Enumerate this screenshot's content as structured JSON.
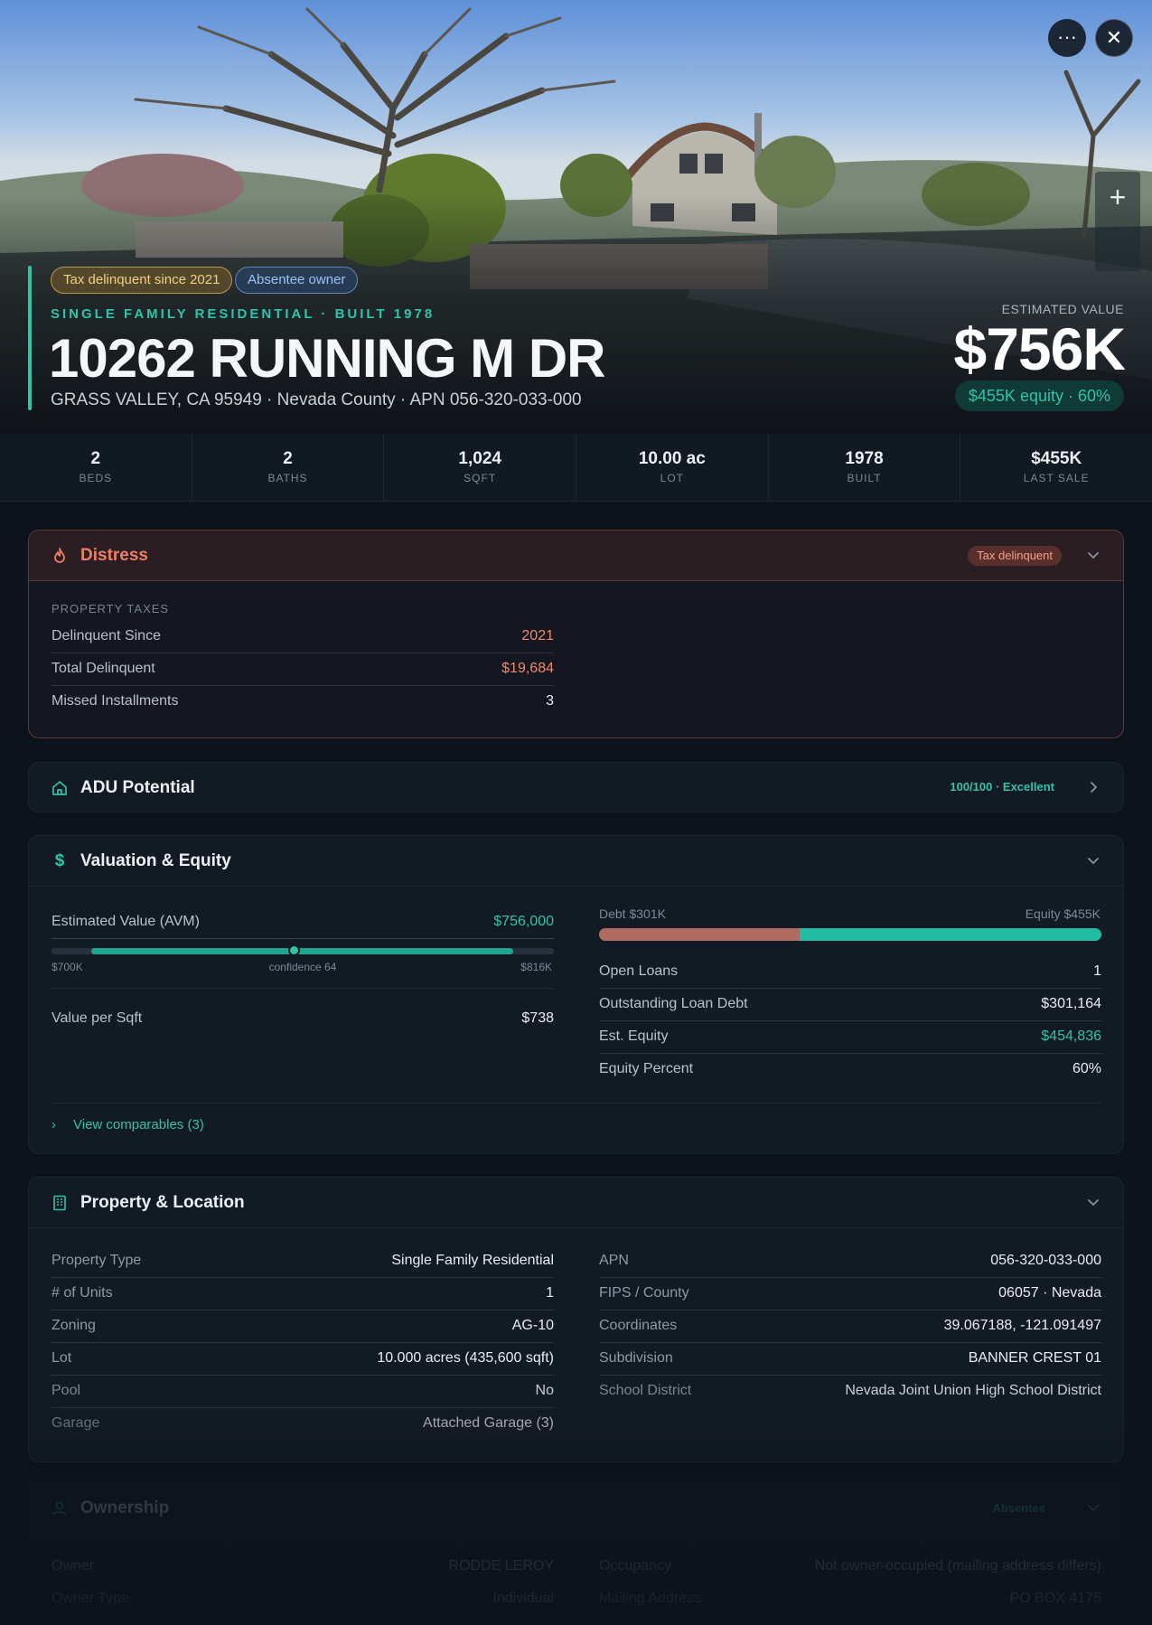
{
  "hero": {
    "tags": [
      "Tax delinquent since 2021",
      "Absentee owner"
    ],
    "property_type": "SINGLE FAMILY RESIDENTIAL · BUILT 1978",
    "address": "10262 RUNNING M DR",
    "subline": "GRASS VALLEY, CA 95949 · Nevada County · APN 056-320-033-000",
    "estimated_label": "ESTIMATED VALUE",
    "estimated_value": "$756K",
    "equity_pill": "$455K equity · 60%",
    "more_icon": "···",
    "close_icon": "✕",
    "zoom_icon": "+"
  },
  "stats": [
    {
      "value": "2",
      "label": "BEDS"
    },
    {
      "value": "2",
      "label": "BATHS"
    },
    {
      "value": "1,024",
      "label": "SQFT"
    },
    {
      "value": "10.00 ac",
      "label": "LOT"
    },
    {
      "value": "1978",
      "label": "BUILT"
    },
    {
      "value": "$455K",
      "label": "LAST SALE"
    }
  ],
  "distress": {
    "title": "Distress",
    "badge": "Tax delinquent",
    "section": "PROPERTY TAXES",
    "rows": [
      {
        "k": "Delinquent Since",
        "v": "2021"
      },
      {
        "k": "Total Delinquent",
        "v": "$19,684"
      },
      {
        "k": "Missed Installments",
        "v": "3"
      }
    ]
  },
  "adu": {
    "title": "ADU Potential",
    "score": "100/100 · Excellent"
  },
  "valuation": {
    "title": "Valuation & Equity",
    "avm_label": "Estimated Value (AVM)",
    "avm_value": "$756,000",
    "range_low": "$700K",
    "range_high": "$816K",
    "confidence": "confidence 64",
    "avm_range": {
      "min": 700,
      "max": 816,
      "value": 756,
      "unit": "K"
    },
    "per_sqft_label": "Value per Sqft",
    "per_sqft_value": "$738",
    "debt_label": "Debt $301K",
    "equity_label": "Equity $455K",
    "equity_fraction": 0.6,
    "rows": [
      {
        "k": "Open Loans",
        "v": "1"
      },
      {
        "k": "Outstanding Loan Debt",
        "v": "$301,164"
      },
      {
        "k": "Est. Equity",
        "v": "$454,836"
      },
      {
        "k": "Equity Percent",
        "v": "60%"
      }
    ],
    "comparables": "View comparables (3)"
  },
  "property": {
    "title": "Property & Location",
    "left": [
      {
        "k": "Property Type",
        "v": "Single Family Residential"
      },
      {
        "k": "# of Units",
        "v": "1"
      },
      {
        "k": "Zoning",
        "v": "AG-10"
      },
      {
        "k": "Lot",
        "v": "10.000 acres (435,600 sqft)"
      },
      {
        "k": "Pool",
        "v": "No"
      },
      {
        "k": "Garage",
        "v": "Attached Garage (3)"
      }
    ],
    "right": [
      {
        "k": "APN",
        "v": "056-320-033-000"
      },
      {
        "k": "FIPS / County",
        "v": "06057 · Nevada"
      },
      {
        "k": "Coordinates",
        "v": "39.067188, -121.091497"
      },
      {
        "k": "Subdivision",
        "v": "BANNER CREST 01"
      },
      {
        "k": "School District",
        "v": "Nevada Joint Union High School District"
      }
    ]
  },
  "ownership": {
    "title": "Ownership",
    "badge": "Absentee",
    "left": [
      {
        "k": "Owner",
        "v": "RODDE LEROY"
      },
      {
        "k": "Owner Type",
        "v": "Individual"
      }
    ],
    "right": [
      {
        "k": "Occupancy",
        "v": "Not owner-occupied (mailing address differs)"
      },
      {
        "k": "Mailing Address",
        "v": "PO BOX 4175"
      }
    ]
  },
  "colors": {
    "accent": "#2ec4a8",
    "distress": "#ee7f67",
    "debt": "#b06c60",
    "background": "#0d131b"
  }
}
